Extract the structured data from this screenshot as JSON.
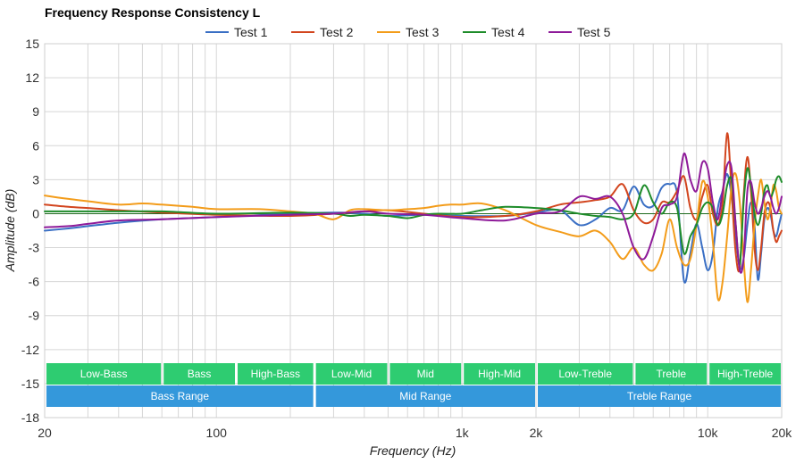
{
  "chart_data": {
    "type": "line",
    "title": "Frequency Response Consistency L",
    "xlabel": "Frequency (Hz)",
    "ylabel": "Amplitude (dB)",
    "x_scale": "log",
    "xlim": [
      20,
      20000
    ],
    "ylim": [
      -18,
      15
    ],
    "grid": true,
    "legend_position": "top",
    "x_ticks": [
      {
        "value": 20,
        "label": "20"
      },
      {
        "value": 100,
        "label": "100"
      },
      {
        "value": 1000,
        "label": "1k"
      },
      {
        "value": 2000,
        "label": "2k"
      },
      {
        "value": 10000,
        "label": "10k"
      },
      {
        "value": 20000,
        "label": "20k"
      }
    ],
    "y_ticks": [
      {
        "value": 15,
        "label": "15"
      },
      {
        "value": 12,
        "label": "12"
      },
      {
        "value": 9,
        "label": "9"
      },
      {
        "value": 6,
        "label": "6"
      },
      {
        "value": 3,
        "label": "3"
      },
      {
        "value": 0,
        "label": "0"
      },
      {
        "value": -3,
        "label": "-3"
      },
      {
        "value": -6,
        "label": "-6"
      },
      {
        "value": -9,
        "label": "-9"
      },
      {
        "value": -12,
        "label": "-12"
      },
      {
        "value": -15,
        "label": "-15"
      },
      {
        "value": -18,
        "label": "-18"
      }
    ],
    "reference_line": {
      "y": 0,
      "color": "#1e6b1e"
    },
    "series": [
      {
        "name": "Test 1",
        "color": "#3a6fc4",
        "x": [
          20,
          25,
          30,
          40,
          60,
          100,
          200,
          300,
          400,
          500,
          700,
          1000,
          1500,
          2000,
          2500,
          3000,
          3500,
          4000,
          4500,
          5000,
          5500,
          6000,
          6500,
          7000,
          7500,
          8000,
          8500,
          9000,
          9500,
          10000,
          10500,
          11000,
          11500,
          12000,
          12500,
          13000,
          13500,
          14000,
          14500,
          15000,
          15500,
          16000,
          16500,
          17000,
          17500,
          18000,
          18500,
          19000,
          19500,
          20000
        ],
        "y": [
          -1.5,
          -1.3,
          -1.1,
          -0.8,
          -0.5,
          -0.3,
          0.0,
          0.1,
          0.0,
          -0.2,
          -0.1,
          -0.2,
          -0.2,
          0.1,
          0.3,
          -1.0,
          -0.5,
          0.5,
          0.3,
          2.4,
          0.8,
          0.7,
          2.3,
          2.6,
          1.8,
          -5.9,
          -3.5,
          -0.9,
          -3.0,
          -5.0,
          -3.5,
          0.5,
          2.0,
          3.5,
          1.5,
          -2.0,
          -4.8,
          -4.0,
          -1.0,
          1.0,
          -1.0,
          -5.8,
          -3.5,
          -0.5,
          0.5,
          0.0,
          -1.5,
          -2.0,
          -1.0,
          0.0
        ]
      },
      {
        "name": "Test 2",
        "color": "#d2451e",
        "x": [
          20,
          25,
          30,
          40,
          60,
          100,
          200,
          300,
          400,
          500,
          700,
          1000,
          1500,
          2000,
          2500,
          3000,
          3500,
          4000,
          4500,
          5000,
          5500,
          6000,
          6500,
          7000,
          7500,
          8000,
          8500,
          9000,
          9500,
          10000,
          10500,
          11000,
          11500,
          12000,
          12500,
          13000,
          13500,
          14000,
          14500,
          15000,
          15500,
          16000,
          16500,
          17000,
          17500,
          18000,
          18500,
          19000,
          19500,
          20000
        ],
        "y": [
          0.8,
          0.6,
          0.5,
          0.3,
          0.1,
          -0.1,
          -0.2,
          0.0,
          0.2,
          0.3,
          0.0,
          -0.3,
          -0.2,
          0.2,
          0.8,
          1.0,
          1.2,
          1.5,
          2.6,
          0.3,
          -0.8,
          -0.5,
          1.0,
          1.0,
          2.0,
          3.3,
          0.5,
          -0.5,
          1.5,
          2.5,
          0.0,
          -1.0,
          1.0,
          7.1,
          2.0,
          -3.5,
          -4.8,
          1.5,
          5.0,
          2.0,
          -3.0,
          -5.0,
          -3.0,
          0.0,
          1.0,
          0.5,
          -1.5,
          -2.5,
          -2.0,
          -1.5
        ]
      },
      {
        "name": "Test 3",
        "color": "#f39c1a",
        "x": [
          20,
          25,
          30,
          40,
          50,
          60,
          80,
          100,
          150,
          200,
          250,
          300,
          350,
          400,
          500,
          600,
          700,
          800,
          900,
          1000,
          1200,
          1500,
          2000,
          2500,
          3000,
          3500,
          4000,
          4500,
          5000,
          5500,
          6000,
          6500,
          7000,
          7500,
          8000,
          8500,
          9000,
          9500,
          10000,
          10500,
          11000,
          11500,
          12000,
          12500,
          13000,
          13500,
          14000,
          14500,
          15000,
          15500,
          16000,
          16500,
          17000,
          17500,
          18000,
          18500,
          19000,
          19500,
          20000
        ],
        "y": [
          1.6,
          1.3,
          1.1,
          0.8,
          0.9,
          0.8,
          0.6,
          0.4,
          0.4,
          0.2,
          0.0,
          -0.5,
          0.3,
          0.4,
          0.3,
          0.4,
          0.5,
          0.7,
          0.8,
          0.8,
          0.9,
          0.3,
          -1.0,
          -1.6,
          -2.0,
          -1.5,
          -2.5,
          -4.0,
          -3.0,
          -4.5,
          -5.0,
          -3.5,
          -0.5,
          -3.0,
          -4.5,
          -4.0,
          -1.0,
          2.8,
          1.5,
          -2.5,
          -7.5,
          -6.0,
          -2.0,
          2.5,
          3.5,
          1.0,
          -4.0,
          -7.8,
          -5.0,
          -1.0,
          1.5,
          3.0,
          1.0,
          -0.5,
          0.5,
          2.5,
          2.0,
          0.5,
          0.0
        ]
      },
      {
        "name": "Test 4",
        "color": "#1e8c2a",
        "x": [
          20,
          25,
          30,
          40,
          60,
          100,
          200,
          300,
          350,
          400,
          500,
          600,
          700,
          800,
          1000,
          1200,
          1500,
          2000,
          2500,
          3000,
          3500,
          4000,
          4500,
          5000,
          5500,
          6000,
          6500,
          7000,
          7500,
          8000,
          8500,
          9000,
          9500,
          10000,
          10500,
          11000,
          11500,
          12000,
          12500,
          13000,
          13500,
          14000,
          14500,
          15000,
          15500,
          16000,
          16500,
          17000,
          17500,
          18000,
          18500,
          19000,
          19500,
          20000
        ],
        "y": [
          0.2,
          0.2,
          0.2,
          0.2,
          0.2,
          0.0,
          0.1,
          0.0,
          -0.2,
          -0.1,
          -0.2,
          -0.4,
          -0.1,
          0.0,
          0.0,
          0.3,
          0.6,
          0.5,
          0.3,
          0.0,
          -0.2,
          -0.3,
          -0.5,
          0.0,
          2.5,
          1.0,
          0.0,
          1.0,
          0.5,
          -3.5,
          -2.0,
          -1.0,
          0.5,
          1.0,
          0.5,
          -1.0,
          0.0,
          2.5,
          3.0,
          -1.0,
          -4.5,
          1.0,
          4.0,
          2.5,
          0.0,
          -1.0,
          0.0,
          2.0,
          2.5,
          1.5,
          2.0,
          3.0,
          3.3,
          2.8
        ]
      },
      {
        "name": "Test 5",
        "color": "#8e1a99",
        "x": [
          20,
          25,
          30,
          40,
          60,
          100,
          200,
          300,
          400,
          500,
          700,
          1000,
          1500,
          2000,
          2500,
          3000,
          3500,
          4000,
          4500,
          5000,
          5500,
          6000,
          6500,
          7000,
          7500,
          8000,
          8500,
          9000,
          9500,
          10000,
          10500,
          11000,
          11500,
          12000,
          12500,
          13000,
          13500,
          14000,
          14500,
          15000,
          15500,
          16000,
          16500,
          17000,
          17500,
          18000,
          18500,
          19000,
          19500,
          20000
        ],
        "y": [
          -1.2,
          -1.1,
          -0.9,
          -0.6,
          -0.5,
          -0.3,
          -0.1,
          0.0,
          0.2,
          0.0,
          -0.1,
          -0.4,
          -0.6,
          0.0,
          0.2,
          1.5,
          1.3,
          1.5,
          0.0,
          -3.0,
          -4.0,
          -2.0,
          0.5,
          0.8,
          1.5,
          5.3,
          3.0,
          2.0,
          4.5,
          4.0,
          1.0,
          -0.5,
          2.0,
          4.3,
          4.0,
          -1.0,
          -5.0,
          -4.0,
          2.0,
          2.8,
          1.0,
          0.0,
          0.5,
          1.5,
          2.0,
          1.5,
          0.5,
          0.0,
          0.5,
          1.5
        ]
      }
    ],
    "bands_top": [
      {
        "label": "Low-Bass",
        "from": 20,
        "to": 60
      },
      {
        "label": "Bass",
        "from": 60,
        "to": 120
      },
      {
        "label": "High-Bass",
        "from": 120,
        "to": 250
      },
      {
        "label": "Low-Mid",
        "from": 250,
        "to": 500
      },
      {
        "label": "Mid",
        "from": 500,
        "to": 1000
      },
      {
        "label": "High-Mid",
        "from": 1000,
        "to": 2000
      },
      {
        "label": "Low-Treble",
        "from": 2000,
        "to": 5000
      },
      {
        "label": "Treble",
        "from": 5000,
        "to": 10000
      },
      {
        "label": "High-Treble",
        "from": 10000,
        "to": 20000
      }
    ],
    "bands_bottom": [
      {
        "label": "Bass Range",
        "from": 20,
        "to": 250
      },
      {
        "label": "Mid Range",
        "from": 250,
        "to": 2000
      },
      {
        "label": "Treble Range",
        "from": 2000,
        "to": 20000
      }
    ],
    "band_colors": {
      "top": "#2ecc71",
      "bottom": "#3498db"
    }
  }
}
